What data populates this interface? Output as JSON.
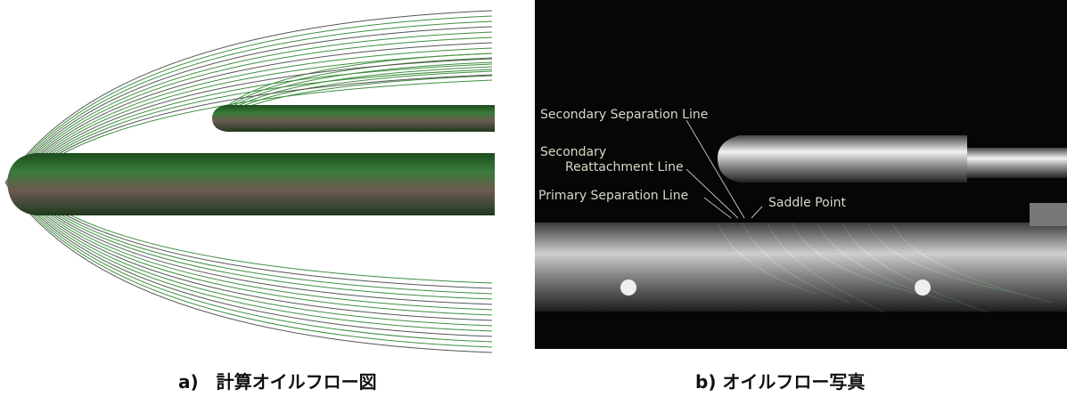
{
  "panels": [
    {
      "caption": "a)　計算オイルフロー図"
    },
    {
      "caption": "b) オイルフロー写真",
      "annotations": [
        "Secondary Separation Line",
        "Secondary",
        "Reattachment Line",
        "Primary Separation Line",
        "Saddle Point"
      ]
    }
  ]
}
